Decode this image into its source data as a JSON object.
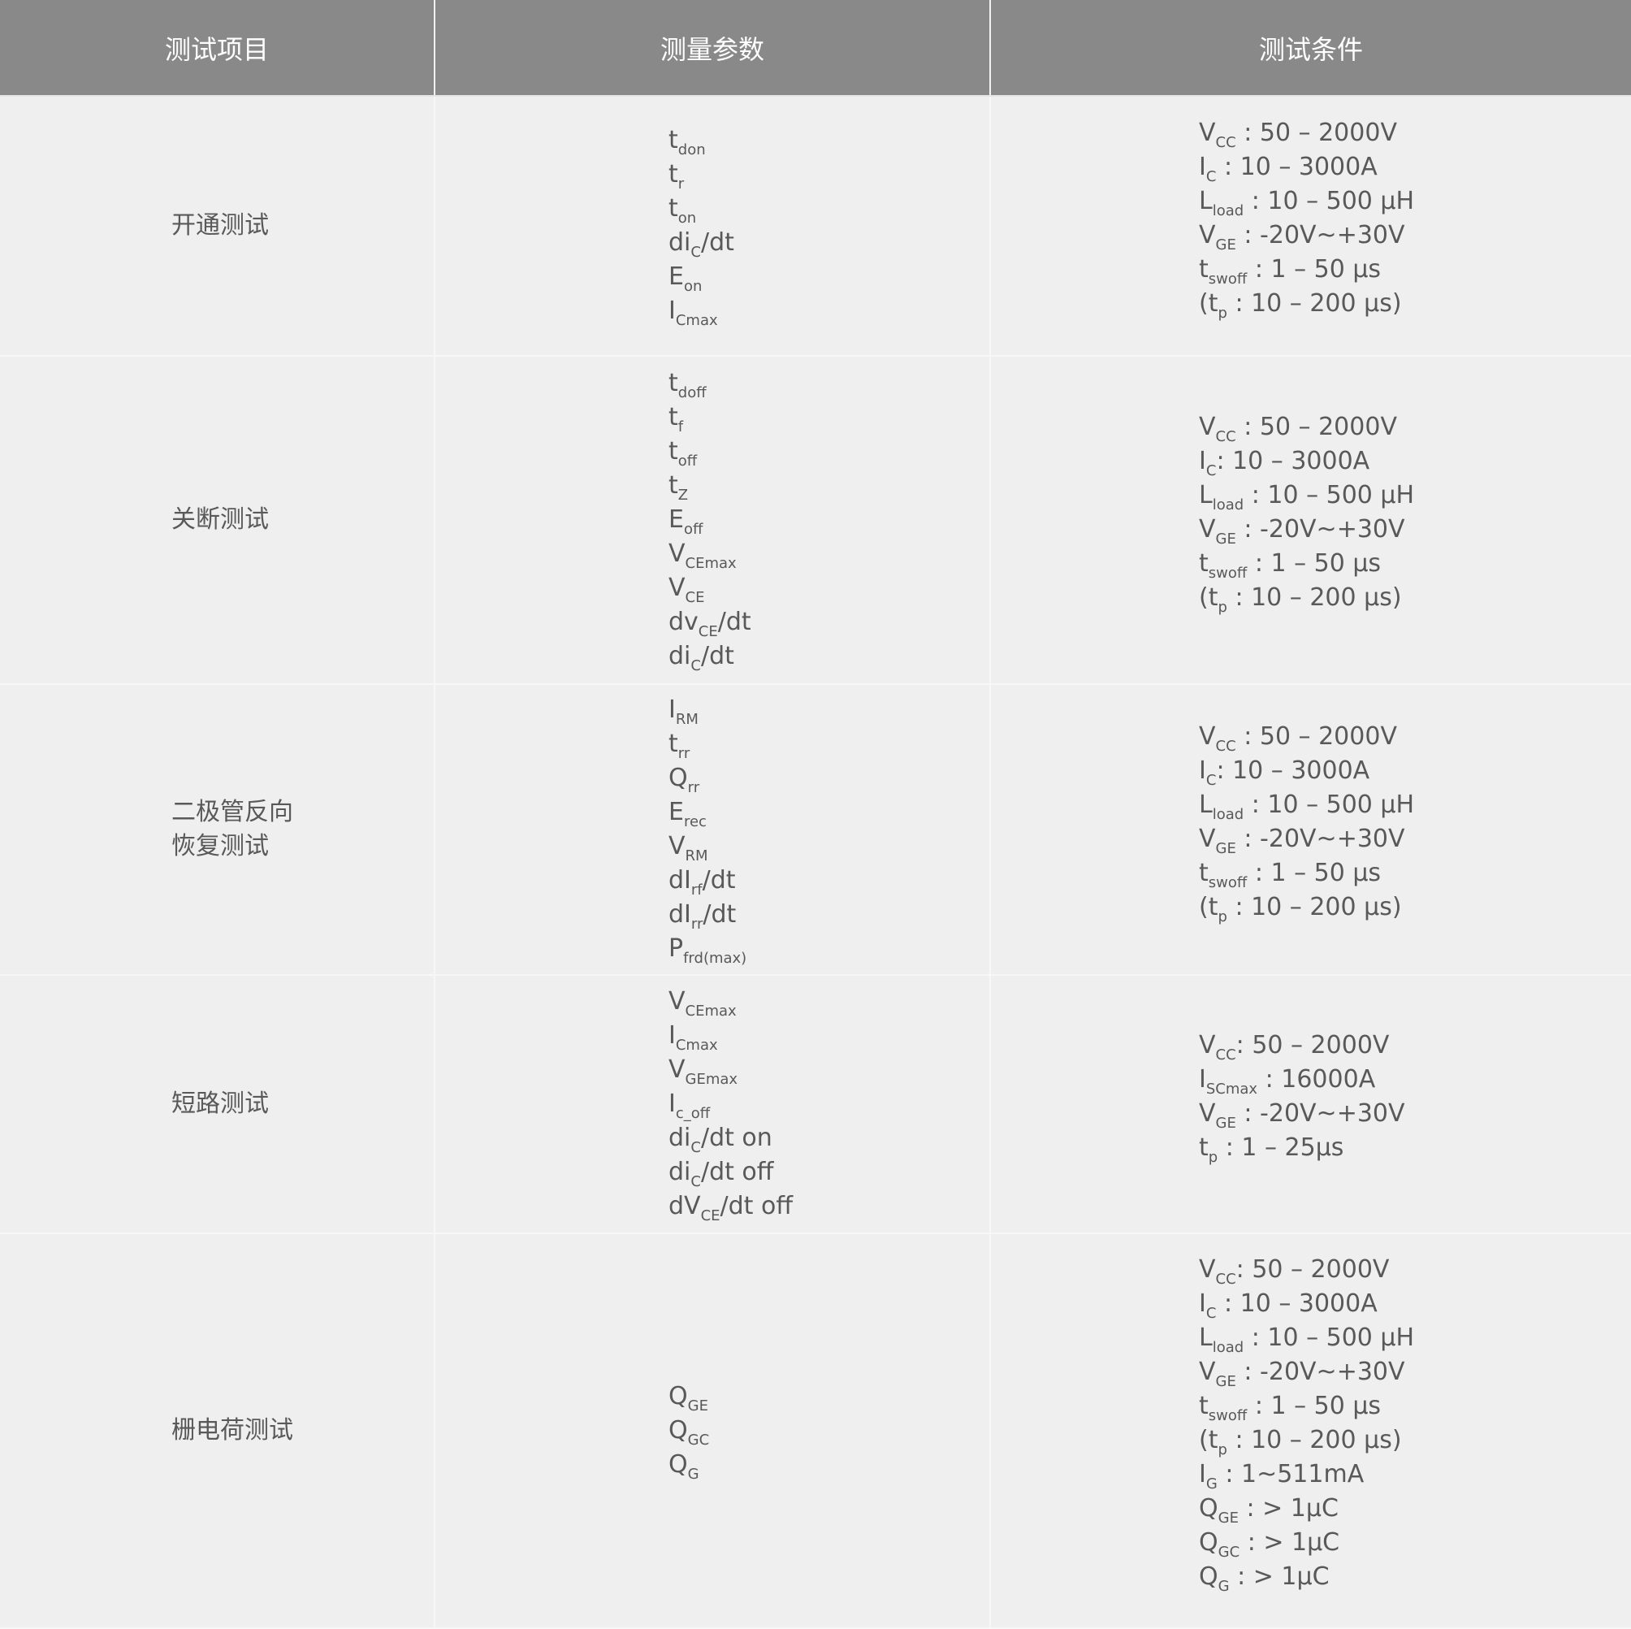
{
  "header": [
    "测试项目",
    "测量参数",
    "测试条件"
  ],
  "rows": [
    {
      "item": [
        "开通测试"
      ],
      "params": [
        [
          "t",
          "don",
          ""
        ],
        [
          "t",
          "r",
          ""
        ],
        [
          "t",
          "on",
          ""
        ],
        [
          "di",
          "C",
          "/dt"
        ],
        [
          "E",
          "on",
          ""
        ],
        [
          "I",
          "Cmax",
          ""
        ]
      ],
      "conds": [
        [
          "V",
          "CC",
          " : 50 – 2000V"
        ],
        [
          "I",
          "C",
          " : 10 – 3000A"
        ],
        [
          "L",
          "load",
          " : 10 – 500 μH"
        ],
        [
          "V",
          "GE",
          " : -20V~+30V"
        ],
        [
          "t",
          "swoff",
          " : 1 – 50 μs"
        ],
        [
          "(t",
          "p",
          " : 10 – 200 μs)"
        ]
      ]
    },
    {
      "item": [
        "关断测试"
      ],
      "params": [
        [
          "t",
          "doff",
          ""
        ],
        [
          "t",
          "f",
          ""
        ],
        [
          "t",
          "off",
          ""
        ],
        [
          "t",
          "Z",
          ""
        ],
        [
          "E",
          "off",
          ""
        ],
        [
          "V",
          "CEmax",
          ""
        ],
        [
          "V",
          "CE",
          ""
        ],
        [
          "dv",
          "CE",
          "/dt"
        ],
        [
          "di",
          "C",
          "/dt"
        ]
      ],
      "conds": [
        [
          "V",
          "CC",
          " : 50 – 2000V"
        ],
        [
          "I",
          "C",
          ": 10 – 3000A"
        ],
        [
          "L",
          "load",
          " : 10 – 500 μH"
        ],
        [
          "V",
          "GE",
          " : -20V~+30V"
        ],
        [
          "t",
          "swoff",
          " : 1 – 50 μs"
        ],
        [
          "(t",
          "p",
          " : 10 – 200 μs)"
        ]
      ]
    },
    {
      "item": [
        "二极管反向",
        "恢复测试"
      ],
      "params": [
        [
          "I",
          "RM",
          ""
        ],
        [
          "t",
          "rr",
          ""
        ],
        [
          "Q",
          "rr",
          ""
        ],
        [
          "E",
          "rec",
          ""
        ],
        [
          "V",
          "RM",
          ""
        ],
        [
          "dI",
          "rf",
          "/dt"
        ],
        [
          "dI",
          "rr",
          "/dt"
        ],
        [
          "P",
          "frd(max)",
          ""
        ]
      ],
      "conds": [
        [
          "V",
          "CC",
          " : 50 – 2000V"
        ],
        [
          "I",
          "C",
          ": 10 – 3000A"
        ],
        [
          "L",
          "load",
          " : 10 – 500 μH"
        ],
        [
          "V",
          "GE",
          " : -20V~+30V"
        ],
        [
          "t",
          "swoff",
          " : 1 – 50 μs"
        ],
        [
          "(t",
          "p",
          " : 10 – 200 μs)"
        ]
      ]
    },
    {
      "item": [
        "短路测试"
      ],
      "params": [
        [
          "V",
          "CEmax",
          ""
        ],
        [
          "I",
          "Cmax",
          ""
        ],
        [
          "V",
          "GEmax",
          ""
        ],
        [
          "I",
          "c_off",
          ""
        ],
        [
          "di",
          "C",
          "/dt on"
        ],
        [
          "di",
          "C",
          "/dt off"
        ],
        [
          "dV",
          "CE",
          "/dt off"
        ]
      ],
      "conds": [
        [
          "V",
          "CC",
          ": 50 – 2000V"
        ],
        [
          "I",
          "SCmax",
          " : 16000A"
        ],
        [
          "V",
          "GE",
          " : -20V~+30V"
        ],
        [
          "t",
          "p",
          " : 1 – 25μs"
        ]
      ]
    },
    {
      "item": [
        "栅电荷测试"
      ],
      "params": [
        [
          "Q",
          "GE",
          ""
        ],
        [
          "Q",
          "GC",
          ""
        ],
        [
          "Q",
          "G",
          ""
        ]
      ],
      "conds": [
        [
          "V",
          "CC",
          ": 50 – 2000V"
        ],
        [
          "I",
          "C",
          " : 10 – 3000A"
        ],
        [
          "L",
          "load",
          " : 10 – 500 μH"
        ],
        [
          "V",
          "GE",
          " : -20V~+30V"
        ],
        [
          "t",
          "swoff",
          " : 1 – 50 μs"
        ],
        [
          "(t",
          "p",
          " : 10 – 200 μs)"
        ],
        [
          "I",
          "G",
          " : 1~511mA"
        ],
        [
          "Q",
          "GE",
          " :  > 1μC"
        ],
        [
          "Q",
          "GC",
          " :  > 1μC"
        ],
        [
          "Q",
          "G",
          " :  > 1μC"
        ]
      ]
    }
  ]
}
